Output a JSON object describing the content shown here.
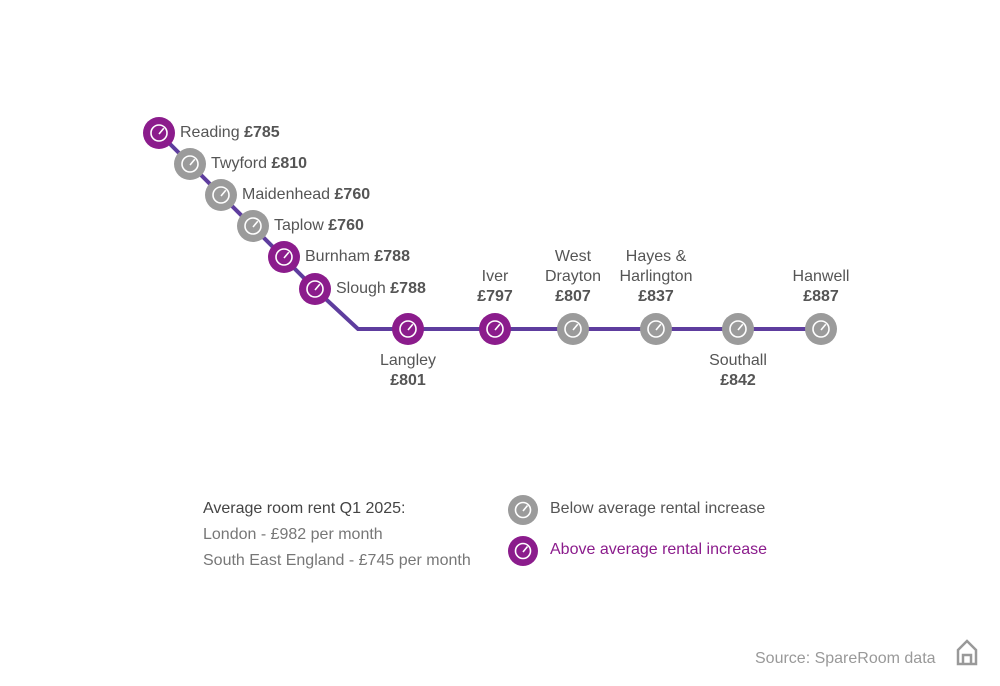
{
  "stations": [
    {
      "name": "Reading",
      "rent": "£785",
      "trend": "above"
    },
    {
      "name": "Twyford",
      "rent": "£810",
      "trend": "below"
    },
    {
      "name": "Maidenhead",
      "rent": "£760",
      "trend": "below"
    },
    {
      "name": "Taplow",
      "rent": "£760",
      "trend": "below"
    },
    {
      "name": "Burnham",
      "rent": "£788",
      "trend": "above"
    },
    {
      "name": "Slough",
      "rent": "£788",
      "trend": "above"
    },
    {
      "name": "Langley",
      "rent": "£801",
      "trend": "above"
    },
    {
      "name": "Iver",
      "rent": "£797",
      "trend": "above"
    },
    {
      "name": "West Drayton",
      "rent": "£807",
      "trend": "below"
    },
    {
      "name": "Hayes & Harlington",
      "rent": "£837",
      "trend": "below"
    },
    {
      "name": "Southall",
      "rent": "£842",
      "trend": "below"
    },
    {
      "name": "Hanwell",
      "rent": "£887",
      "trend": "below"
    }
  ],
  "info": {
    "title": "Average room rent Q1 2025:",
    "lines": [
      "London - £982 per month",
      "South East England - £745 per month"
    ]
  },
  "legend": [
    {
      "label": "Below average rental increase",
      "trend": "below"
    },
    {
      "label": "Above average rental increase",
      "trend": "above"
    }
  ],
  "colors": {
    "above": "#8b1c8c",
    "below": "#9b9b9b",
    "line": "#5e3d9e"
  },
  "source": "Source: SpareRoom data"
}
